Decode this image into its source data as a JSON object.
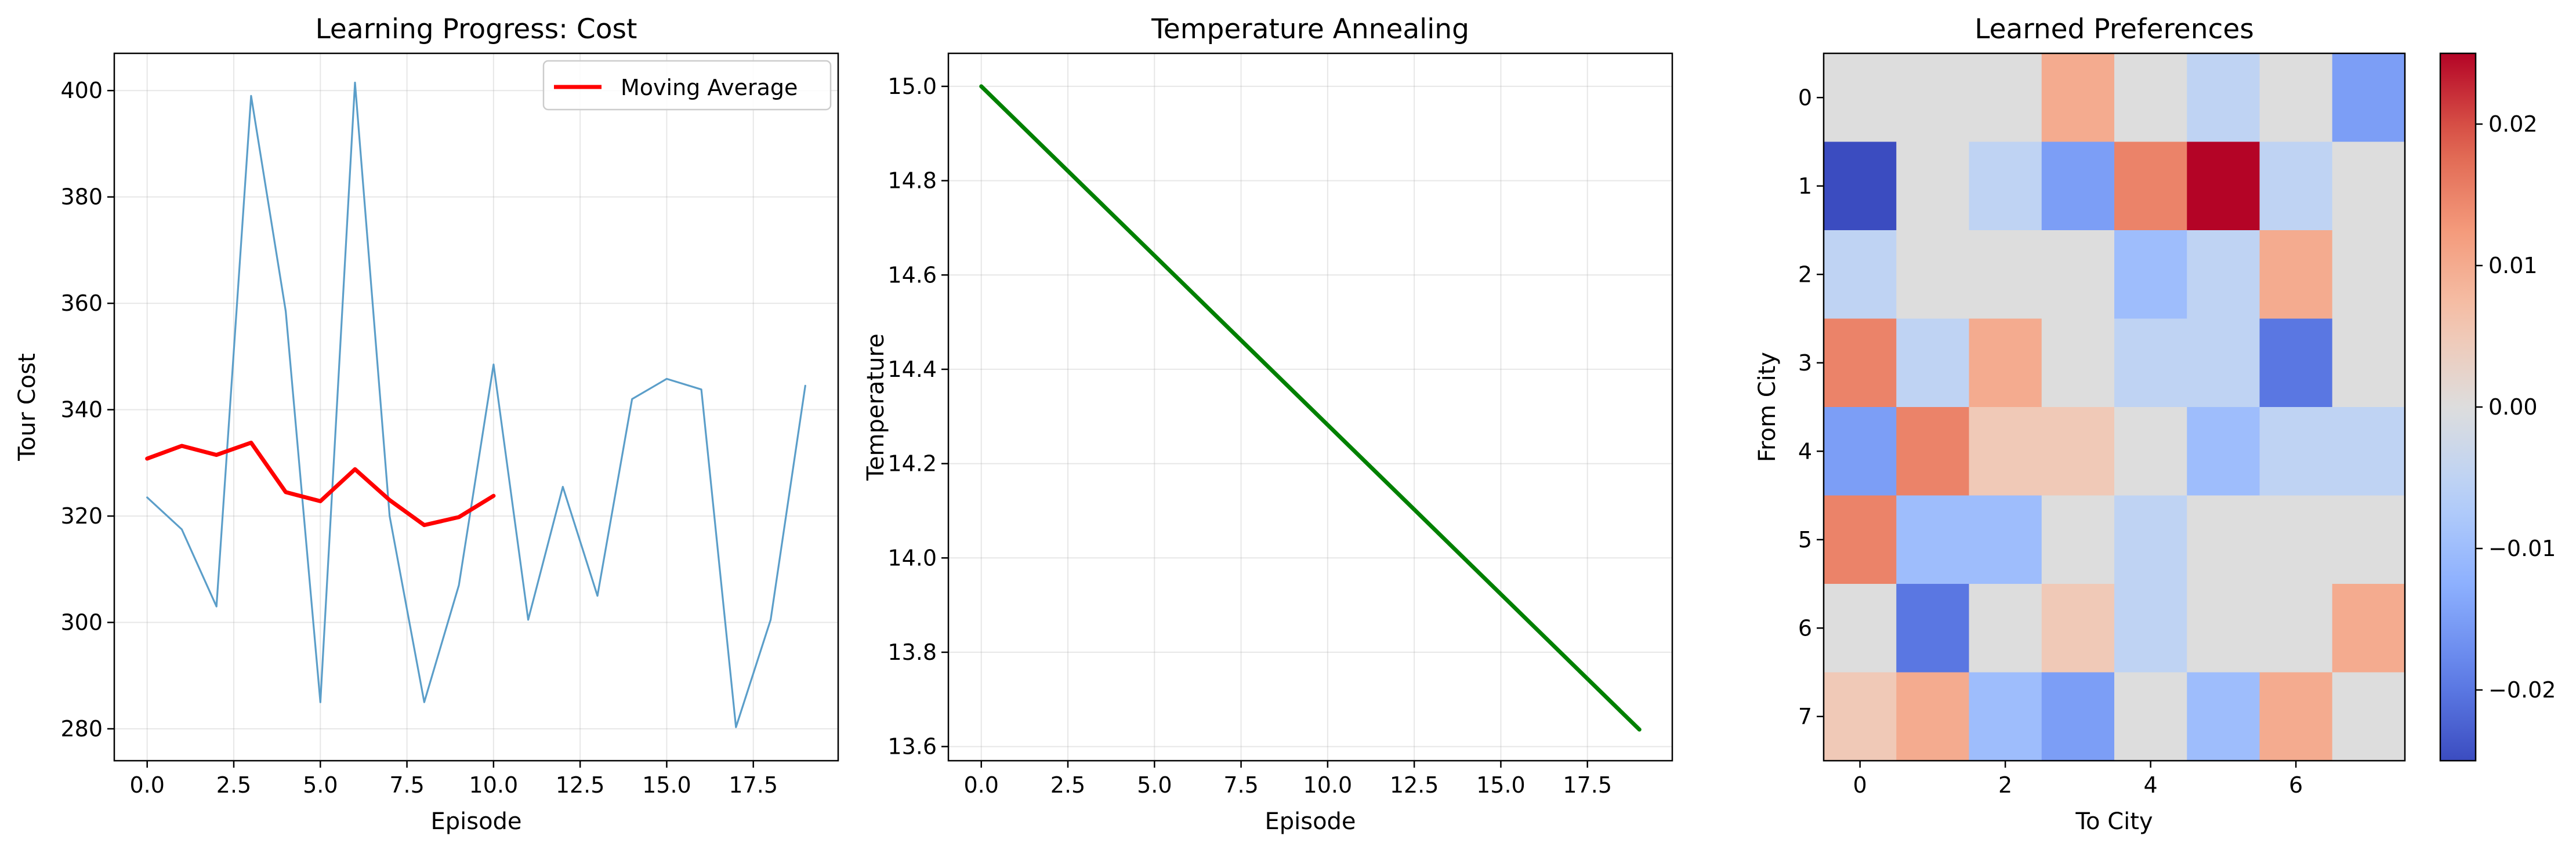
{
  "chart_data": [
    {
      "type": "line",
      "title": "Learning Progress: Cost",
      "xlabel": "Episode",
      "ylabel": "Tour Cost",
      "xlim": [
        -0.95,
        19.95
      ],
      "ylim": [
        274,
        407
      ],
      "xticks": [
        0.0,
        2.5,
        5.0,
        7.5,
        10.0,
        12.5,
        15.0,
        17.5
      ],
      "xtick_labels": [
        "0.0",
        "2.5",
        "5.0",
        "7.5",
        "10.0",
        "12.5",
        "15.0",
        "17.5"
      ],
      "yticks": [
        280,
        300,
        320,
        340,
        360,
        380,
        400
      ],
      "ytick_labels": [
        "280",
        "300",
        "320",
        "340",
        "360",
        "380",
        "400"
      ],
      "grid": true,
      "legend": {
        "placement": "upper-right",
        "entries": [
          "Moving Average"
        ]
      },
      "series": [
        {
          "color": "#5b9ec9",
          "x": [
            0,
            1,
            2,
            3,
            4,
            5,
            6,
            7,
            8,
            9,
            10,
            11,
            12,
            13,
            14,
            15,
            16,
            17,
            18,
            19
          ],
          "values": [
            323.5,
            317.5,
            303,
            399,
            358.5,
            285,
            401.5,
            320,
            285,
            307,
            348.5,
            300.5,
            325.5,
            305,
            342,
            345.8,
            343.8,
            280.3,
            300.5,
            344.5
          ]
        },
        {
          "name": "Moving Average",
          "color": "#ff0000",
          "x": [
            0,
            1,
            2,
            3,
            4,
            5,
            6,
            7,
            8,
            9,
            10
          ],
          "values": [
            330.8,
            333.2,
            331.5,
            333.8,
            324.5,
            322.8,
            328.8,
            323.0,
            318.3,
            319.8,
            323.8
          ]
        }
      ]
    },
    {
      "type": "line",
      "title": "Temperature Annealing",
      "xlabel": "Episode",
      "ylabel": "Temperature",
      "xlim": [
        -0.95,
        19.95
      ],
      "ylim": [
        13.57,
        15.07
      ],
      "xticks": [
        0.0,
        2.5,
        5.0,
        7.5,
        10.0,
        12.5,
        15.0,
        17.5
      ],
      "xtick_labels": [
        "0.0",
        "2.5",
        "5.0",
        "7.5",
        "10.0",
        "12.5",
        "15.0",
        "17.5"
      ],
      "yticks": [
        13.6,
        13.8,
        14.0,
        14.2,
        14.4,
        14.6,
        14.8,
        15.0
      ],
      "ytick_labels": [
        "13.6",
        "13.8",
        "14.0",
        "14.2",
        "14.4",
        "14.6",
        "14.8",
        "15.0"
      ],
      "grid": true,
      "series": [
        {
          "color": "#008000",
          "x": [
            0,
            19
          ],
          "values": [
            15.0,
            13.636
          ]
        }
      ]
    },
    {
      "type": "heatmap",
      "title": "Learned Preferences",
      "xlabel": "To City",
      "ylabel": "From City",
      "colormap": "coolwarm",
      "vmin": -0.025,
      "vmax": 0.025,
      "xticks": [
        0,
        2,
        4,
        6
      ],
      "xtick_labels": [
        "0",
        "2",
        "4",
        "6"
      ],
      "yticks": [
        0,
        1,
        2,
        3,
        4,
        5,
        6,
        7
      ],
      "ytick_labels": [
        "0",
        "1",
        "2",
        "3",
        "4",
        "5",
        "6",
        "7"
      ],
      "colorbar_ticks": [
        -0.02,
        -0.01,
        0.0,
        0.01,
        0.02
      ],
      "colorbar_tick_labels": [
        "−0.02",
        "−0.01",
        "0.00",
        "0.01",
        "0.02"
      ],
      "values": [
        [
          0.0,
          0.0,
          0.0,
          0.01,
          0.0,
          -0.005,
          0.0,
          -0.015
        ],
        [
          -0.025,
          0.0,
          -0.005,
          -0.015,
          0.015,
          0.025,
          -0.005,
          0.0
        ],
        [
          -0.005,
          0.0,
          0.0,
          0.0,
          -0.01,
          -0.005,
          0.01,
          0.0
        ],
        [
          0.015,
          -0.005,
          0.01,
          0.0,
          -0.005,
          -0.005,
          -0.02,
          0.0
        ],
        [
          -0.015,
          0.015,
          0.005,
          0.005,
          0.0,
          -0.01,
          -0.005,
          -0.005
        ],
        [
          0.015,
          -0.01,
          -0.01,
          0.0,
          -0.005,
          0.0,
          0.0,
          0.0
        ],
        [
          0.0,
          -0.02,
          0.0,
          0.005,
          -0.005,
          0.0,
          0.0,
          0.01
        ],
        [
          0.005,
          0.01,
          -0.01,
          -0.015,
          0.0,
          -0.01,
          0.01,
          0.0
        ]
      ]
    }
  ]
}
